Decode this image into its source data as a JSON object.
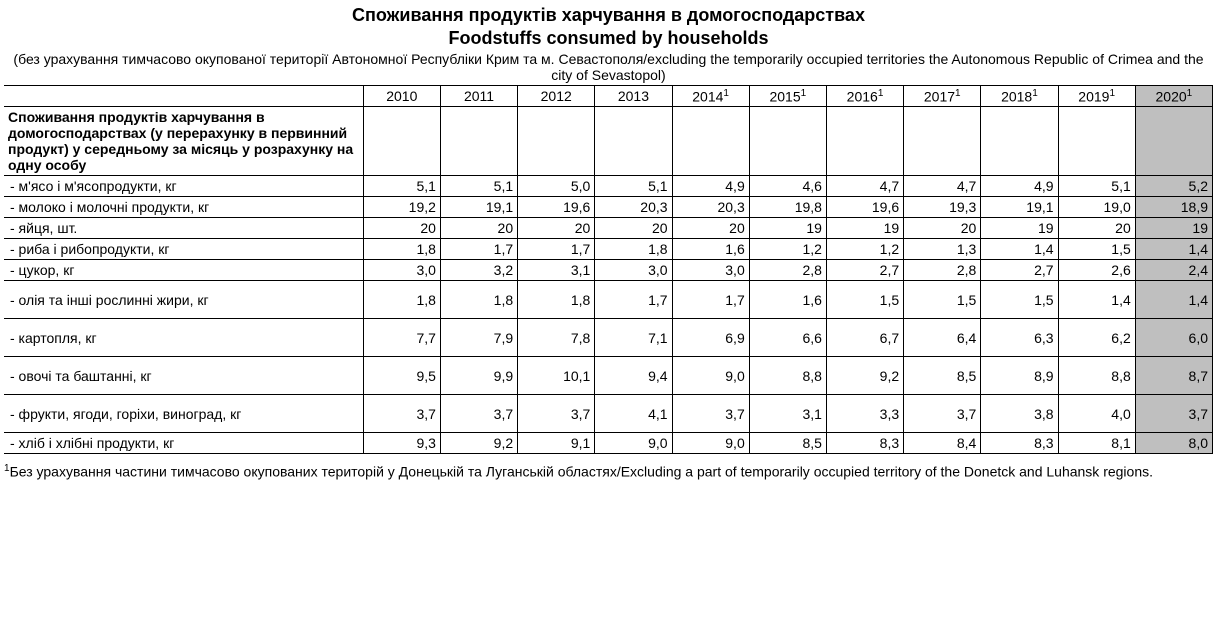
{
  "title_line1": "Споживання продуктів харчування в домогосподарствах",
  "title_line2": "Foodstuffs consumed by households",
  "subtitle": "(без урахування тимчасово окупованої території Автономної Республіки Крим та м. Севастополя/excluding the temporarily occupied territories the Autonomous Republic of Crimea and the city of Sevastopol)",
  "years": [
    "2010",
    "2011",
    "2012",
    "2013",
    "2014",
    "2015",
    "2016",
    "2017",
    "2018",
    "2019",
    "2020"
  ],
  "years_sup": [
    "",
    "",
    "",
    "",
    "1",
    "1",
    "1",
    "1",
    "1",
    "1",
    "1"
  ],
  "highlight_col_index": 10,
  "heading_row": "Споживання продуктів харчування в домогосподарствах (у перерахунку в первинний продукт) у середньому за місяць у розрахунку на одну особу",
  "rows": [
    {
      "label": "- м'ясо і м'ясопродукти, кг",
      "vals": [
        "5,1",
        "5,1",
        "5,0",
        "5,1",
        "4,9",
        "4,6",
        "4,7",
        "4,7",
        "4,9",
        "5,1",
        "5,2"
      ]
    },
    {
      "label": "- молоко і молочні продукти, кг",
      "vals": [
        "19,2",
        "19,1",
        "19,6",
        "20,3",
        "20,3",
        "19,8",
        "19,6",
        "19,3",
        "19,1",
        "19,0",
        "18,9"
      ]
    },
    {
      "label": "- яйця, шт.",
      "vals": [
        "20",
        "20",
        "20",
        "20",
        "20",
        "19",
        "19",
        "20",
        "19",
        "20",
        "19"
      ]
    },
    {
      "label": "- риба і рибопродукти, кг",
      "vals": [
        "1,8",
        "1,7",
        "1,7",
        "1,8",
        "1,6",
        "1,2",
        "1,2",
        "1,3",
        "1,4",
        "1,5",
        "1,4"
      ]
    },
    {
      "label": "- цукор, кг",
      "vals": [
        "3,0",
        "3,2",
        "3,1",
        "3,0",
        "3,0",
        "2,8",
        "2,7",
        "2,8",
        "2,7",
        "2,6",
        "2,4"
      ]
    },
    {
      "label": "- олія та інші рослинні жири, кг",
      "vals": [
        "1,8",
        "1,8",
        "1,8",
        "1,7",
        "1,7",
        "1,6",
        "1,5",
        "1,5",
        "1,5",
        "1,4",
        "1,4"
      ],
      "tall": true
    },
    {
      "label": "- картопля, кг",
      "vals": [
        "7,7",
        "7,9",
        "7,8",
        "7,1",
        "6,9",
        "6,6",
        "6,7",
        "6,4",
        "6,3",
        "6,2",
        "6,0"
      ],
      "tall": true
    },
    {
      "label": "- овочі та баштанні, кг",
      "vals": [
        "9,5",
        "9,9",
        "10,1",
        "9,4",
        "9,0",
        "8,8",
        "9,2",
        "8,5",
        "8,9",
        "8,8",
        "8,7"
      ],
      "tall": true
    },
    {
      "label": "- фрукти, ягоди, горіхи, виноград, кг",
      "vals": [
        "3,7",
        "3,7",
        "3,7",
        "4,1",
        "3,7",
        "3,1",
        "3,3",
        "3,7",
        "3,8",
        "4,0",
        "3,7"
      ],
      "tall": true
    },
    {
      "label": "- хліб і хлібні продукти, кг",
      "vals": [
        "9,3",
        "9,2",
        "9,1",
        "9,0",
        "9,0",
        "8,5",
        "8,3",
        "8,4",
        "8,3",
        "8,1",
        "8,0"
      ]
    }
  ],
  "footnote_sup": "1",
  "footnote": "Без урахування частини тимчасово окупованих територій у Донецькій та Луганській областях/Excluding a part of temporarily occupied territory of the Donetck and Luhansk regions.",
  "colors": {
    "highlight_bg": "#bfbfbf",
    "border": "#000000",
    "text": "#000000",
    "background": "#ffffff"
  },
  "typography": {
    "title_fontsize_pt": 14,
    "body_fontsize_pt": 10,
    "font_family": "Verdana"
  }
}
